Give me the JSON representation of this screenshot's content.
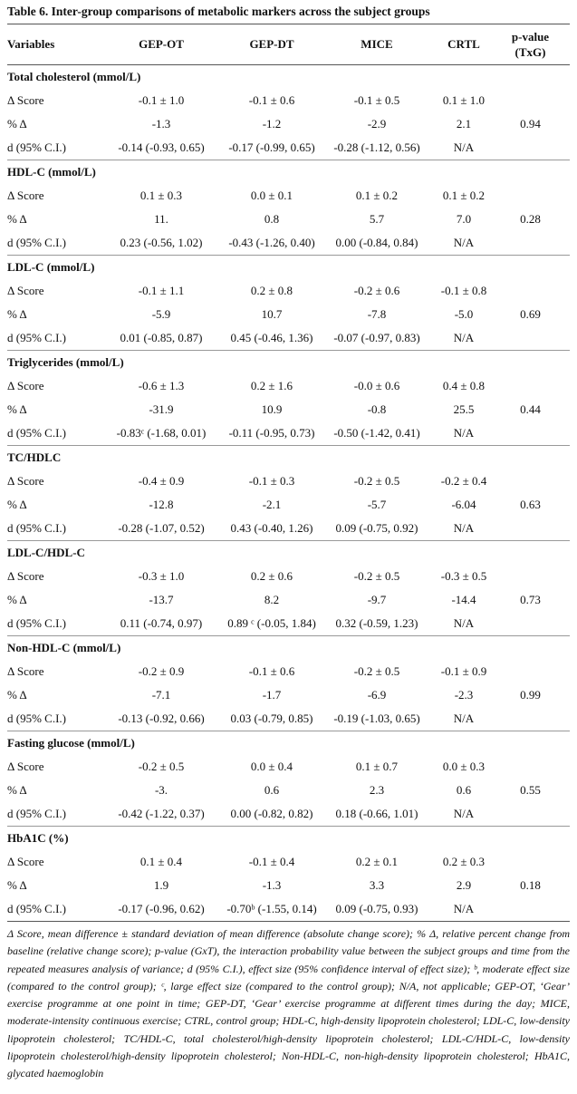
{
  "title": "Table 6. Inter-group comparisons of metabolic markers across the subject groups",
  "header": [
    "Variables",
    "GEP-OT",
    "GEP-DT",
    "MICE",
    "CRTL",
    "p-value (TxG)"
  ],
  "groups": [
    {
      "title": "Total cholesterol (mmol/L)",
      "p": "0.94",
      "rows": [
        {
          "label": "Δ Score",
          "values": [
            "-0.1 ± 1.0",
            "-0.1 ± 0.6",
            "-0.1 ± 0.5",
            "0.1 ± 1.0"
          ]
        },
        {
          "label": "% Δ",
          "values": [
            "-1.3",
            "-1.2",
            "-2.9",
            "2.1"
          ]
        },
        {
          "label": "d (95% C.I.)",
          "values": [
            "-0.14 (-0.93, 0.65)",
            "-0.17 (-0.99, 0.65)",
            "-0.28 (-1.12, 0.56)",
            "N/A"
          ]
        }
      ]
    },
    {
      "title": "HDL-C (mmol/L)",
      "p": "0.28",
      "rows": [
        {
          "label": "Δ Score",
          "values": [
            "0.1 ± 0.3",
            "0.0 ± 0.1",
            "0.1 ± 0.2",
            "0.1 ± 0.2"
          ]
        },
        {
          "label": "% Δ",
          "values": [
            "11.",
            "0.8",
            "5.7",
            "7.0"
          ]
        },
        {
          "label": "d (95% C.I.)",
          "values": [
            "0.23 (-0.56, 1.02)",
            "-0.43 (-1.26, 0.40)",
            "0.00 (-0.84, 0.84)",
            "N/A"
          ]
        }
      ]
    },
    {
      "title": "LDL-C (mmol/L)",
      "p": "0.69",
      "rows": [
        {
          "label": "Δ Score",
          "values": [
            "-0.1 ± 1.1",
            "0.2 ± 0.8",
            "-0.2 ± 0.6",
            "-0.1 ± 0.8"
          ]
        },
        {
          "label": "% Δ",
          "values": [
            "-5.9",
            "10.7",
            "-7.8",
            "-5.0"
          ]
        },
        {
          "label": "d (95% C.I.)",
          "values": [
            "0.01 (-0.85, 0.87)",
            "0.45 (-0.46, 1.36)",
            "-0.07 (-0.97, 0.83)",
            "N/A"
          ]
        }
      ]
    },
    {
      "title": "Triglycerides (mmol/L)",
      "p": "0.44",
      "rows": [
        {
          "label": "Δ Score",
          "values": [
            "-0.6 ± 1.3",
            "0.2 ± 1.6",
            "-0.0 ± 0.6",
            "0.4 ± 0.8"
          ]
        },
        {
          "label": "% Δ",
          "values": [
            "-31.9",
            "10.9",
            "-0.8",
            "25.5"
          ]
        },
        {
          "label": "d (95% C.I.)",
          "values": [
            "-0.83ᶜ (-1.68, 0.01)",
            "-0.11 (-0.95, 0.73)",
            "-0.50 (-1.42, 0.41)",
            "N/A"
          ]
        }
      ]
    },
    {
      "title": "TC/HDLC",
      "p": "0.63",
      "rows": [
        {
          "label": "Δ Score",
          "values": [
            "-0.4 ± 0.9",
            "-0.1 ± 0.3",
            "-0.2 ± 0.5",
            "-0.2 ± 0.4"
          ]
        },
        {
          "label": "% Δ",
          "values": [
            "-12.8",
            "-2.1",
            "-5.7",
            "-6.04"
          ]
        },
        {
          "label": "d (95% C.I.)",
          "values": [
            "-0.28 (-1.07, 0.52)",
            "0.43 (-0.40, 1.26)",
            "0.09 (-0.75, 0.92)",
            "N/A"
          ]
        }
      ]
    },
    {
      "title": "LDL-C/HDL-C",
      "p": "0.73",
      "rows": [
        {
          "label": "Δ Score",
          "values": [
            "-0.3 ± 1.0",
            "0.2 ± 0.6",
            "-0.2 ± 0.5",
            "-0.3 ± 0.5"
          ]
        },
        {
          "label": "% Δ",
          "values": [
            "-13.7",
            "8.2",
            "-9.7",
            "-14.4"
          ]
        },
        {
          "label": "d (95% C.I.)",
          "values": [
            "0.11 (-0.74, 0.97)",
            "0.89 ᶜ (-0.05, 1.84)",
            "0.32 (-0.59, 1.23)",
            "N/A"
          ]
        }
      ]
    },
    {
      "title": "Non-HDL-C (mmol/L)",
      "p": "0.99",
      "rows": [
        {
          "label": "Δ Score",
          "values": [
            "-0.2 ± 0.9",
            "-0.1 ± 0.6",
            "-0.2 ± 0.5",
            "-0.1 ± 0.9"
          ]
        },
        {
          "label": "% Δ",
          "values": [
            "-7.1",
            "-1.7",
            "-6.9",
            "-2.3"
          ]
        },
        {
          "label": "d (95% C.I.)",
          "values": [
            "-0.13 (-0.92, 0.66)",
            "0.03 (-0.79, 0.85)",
            "-0.19 (-1.03, 0.65)",
            "N/A"
          ]
        }
      ]
    },
    {
      "title": "Fasting glucose (mmol/L)",
      "p": "0.55",
      "rows": [
        {
          "label": "Δ Score",
          "values": [
            "-0.2 ± 0.5",
            "0.0 ± 0.4",
            "0.1 ± 0.7",
            "0.0 ± 0.3"
          ]
        },
        {
          "label": "% Δ",
          "values": [
            "-3.",
            "0.6",
            "2.3",
            "0.6"
          ]
        },
        {
          "label": "d (95% C.I.)",
          "values": [
            "-0.42 (-1.22, 0.37)",
            "0.00 (-0.82, 0.82)",
            "0.18 (-0.66, 1.01)",
            "N/A"
          ]
        }
      ]
    },
    {
      "title": "HbA1C (%)",
      "p": "0.18",
      "rows": [
        {
          "label": "Δ Score",
          "values": [
            "0.1 ± 0.4",
            "-0.1 ± 0.4",
            "0.2 ± 0.1",
            "0.2 ± 0.3"
          ]
        },
        {
          "label": "% Δ",
          "values": [
            "1.9",
            "-1.3",
            "3.3",
            "2.9"
          ]
        },
        {
          "label": "d (95% C.I.)",
          "values": [
            "-0.17 (-0.96, 0.62)",
            "-0.70ᵇ (-1.55, 0.14)",
            "0.09 (-0.75, 0.93)",
            "N/A"
          ]
        }
      ]
    }
  ],
  "footnote": "Δ Score, mean difference ± standard deviation of mean difference (absolute change score); % Δ, relative percent change from baseline (relative change score); p-value (GxT), the interaction probability value between the subject groups and time from the repeated measures analysis of variance; d (95% C.I.), effect size (95% confidence interval of effect size); ᵇ, moderate effect size (compared to the control group); ᶜ, large effect size (compared to the control group); N/A, not applicable; GEP-OT, ‘Gear’ exercise programme at one point in time; GEP-DT, ‘Gear’ exercise programme at different times during the day; MICE, moderate-intensity continuous exercise; CTRL, control group; HDL-C, high-density lipoprotein cholesterol; LDL-C, low-density lipoprotein cholesterol; TC/HDL-C, total cholesterol/high-density lipoprotein cholesterol; LDL-C/HDL-C, low-density lipoprotein cholesterol/high-density lipoprotein cholesterol; Non-HDL-C, non-high-density lipoprotein cholesterol; HbA1C, glycated haemoglobin"
}
